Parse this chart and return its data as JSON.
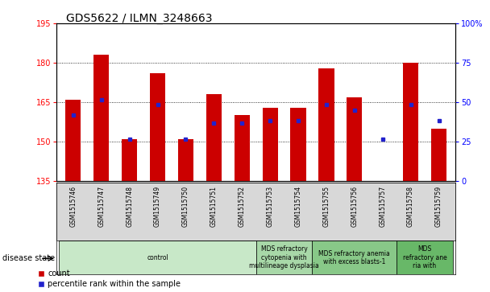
{
  "title": "GDS5622 / ILMN_3248663",
  "samples": [
    "GSM1515746",
    "GSM1515747",
    "GSM1515748",
    "GSM1515749",
    "GSM1515750",
    "GSM1515751",
    "GSM1515752",
    "GSM1515753",
    "GSM1515754",
    "GSM1515755",
    "GSM1515756",
    "GSM1515757",
    "GSM1515758",
    "GSM1515759"
  ],
  "counts": [
    166,
    183,
    151,
    176,
    151,
    168,
    160,
    163,
    163,
    178,
    167,
    135,
    180,
    155
  ],
  "percentiles": [
    160,
    166,
    151,
    164,
    151,
    157,
    157,
    158,
    158,
    164,
    162,
    151,
    164,
    158
  ],
  "ylim_left": [
    135,
    195
  ],
  "ylim_right": [
    0,
    100
  ],
  "yticks_left": [
    135,
    150,
    165,
    180,
    195
  ],
  "yticks_right": [
    0,
    25,
    50,
    75,
    100
  ],
  "bar_color": "#cc0000",
  "blue_color": "#2222cc",
  "bar_base": 135,
  "disease_groups": [
    {
      "label": "control",
      "start": 0,
      "end": 7,
      "color": "#c8e8c8"
    },
    {
      "label": "MDS refractory\ncytopenia with\nmultilineage dysplasia",
      "start": 7,
      "end": 9,
      "color": "#a8d8a8"
    },
    {
      "label": "MDS refractory anemia\nwith excess blasts-1",
      "start": 9,
      "end": 12,
      "color": "#88c888"
    },
    {
      "label": "MDS\nrefractory ane\nria with",
      "start": 12,
      "end": 14,
      "color": "#68b868"
    }
  ],
  "legend_count_label": "count",
  "legend_percentile_label": "percentile rank within the sample",
  "disease_state_label": "disease state",
  "sample_bg_color": "#d8d8d8",
  "title_fontsize": 10,
  "tick_fontsize": 7,
  "sample_fontsize": 5.5,
  "disease_fontsize": 5.5
}
